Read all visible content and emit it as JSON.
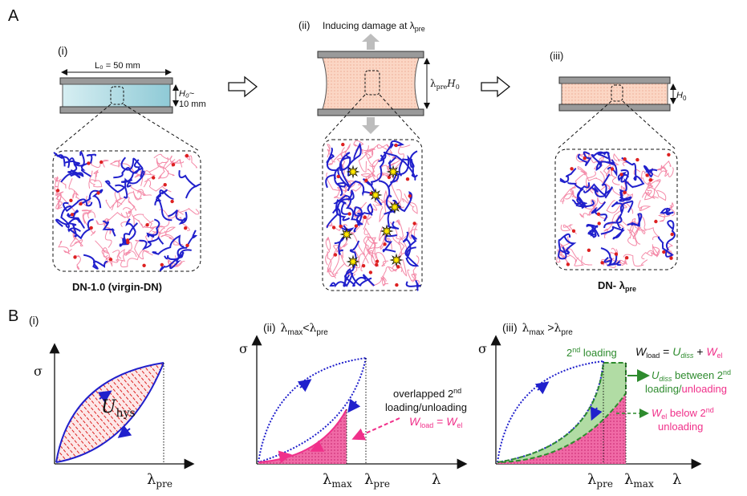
{
  "panel_a": {
    "label": "A",
    "step1": {
      "roman": "(i)",
      "length_label": "L₀ = 50 mm",
      "height_label_1": "H₀~",
      "height_label_2": "10 mm",
      "name": "DN-1.0 (virgin-DN)"
    },
    "step2": {
      "roman": "(ii)",
      "damage_label": "Inducing damage at λ",
      "damage_sub": "pre",
      "height_label": "λ",
      "height_label_sub": "pre",
      "height_label_tail": "H",
      "height_label_tail_sub": "0"
    },
    "step3": {
      "roman": "(iii)",
      "height_label": "H",
      "height_label_sub": "0",
      "name": "DN- λ",
      "name_sub": "pre"
    }
  },
  "panel_b": {
    "label": "B",
    "plot1": {
      "roman": "(i)",
      "ylabel": "σ",
      "xlabel": "λ",
      "xlabel_sub": "pre",
      "area_label": "U",
      "area_label_sub": "hys"
    },
    "plot2": {
      "roman": "(ii)",
      "cond_a": "λ",
      "cond_a_sub": "max",
      "cond_op": "<",
      "cond_b": "λ",
      "cond_b_sub": "pre",
      "ylabel": "σ",
      "xlabel": "λ",
      "tick1": "λ",
      "tick1_sub": "max",
      "tick2": "λ",
      "tick2_sub": "pre",
      "note_1": "overlapped 2",
      "note_1_sup": "nd",
      "note_2": "loading/unloading",
      "eq_a": "W",
      "eq_a_sub": "load",
      "eq_eq": " = ",
      "eq_b": "W",
      "eq_b_sub": "el"
    },
    "plot3": {
      "roman": "(iii)",
      "cond_a": "λ",
      "cond_a_sub": "max",
      "cond_op": " >",
      "cond_b": "λ",
      "cond_b_sub": "pre",
      "ylabel": "σ",
      "xlabel": "λ",
      "tick1": "λ",
      "tick1_sub": "pre",
      "tick2": "λ",
      "tick2_sub": "max",
      "second_loading": "2",
      "second_loading_sup": "nd",
      "second_loading_tail": " loading",
      "eq_w": "W",
      "eq_w_sub": "load",
      "eq_eq": " = ",
      "eq_u": "U",
      "eq_u_sub": "diss",
      "eq_plus": " + ",
      "eq_wel": "W",
      "eq_wel_sub": "el",
      "u_note_a": "U",
      "u_note_a_sub": "diss",
      "u_note_b": " between 2",
      "u_note_b_sup": "nd",
      "u_note_2a": "loading/",
      "u_note_2b": "unloading",
      "w_note_a": "W",
      "w_note_a_sub": "el",
      "w_note_b": " below 2",
      "w_note_b_sup": "nd",
      "w_note_2": "unloading"
    }
  },
  "colors": {
    "blue": "#2020cc",
    "pink": "#f0308a",
    "green": "#2e8b2e",
    "red": "#dd2020",
    "gel_blue": "#bfe3ea",
    "gel_peach": "#fbd6c4"
  }
}
